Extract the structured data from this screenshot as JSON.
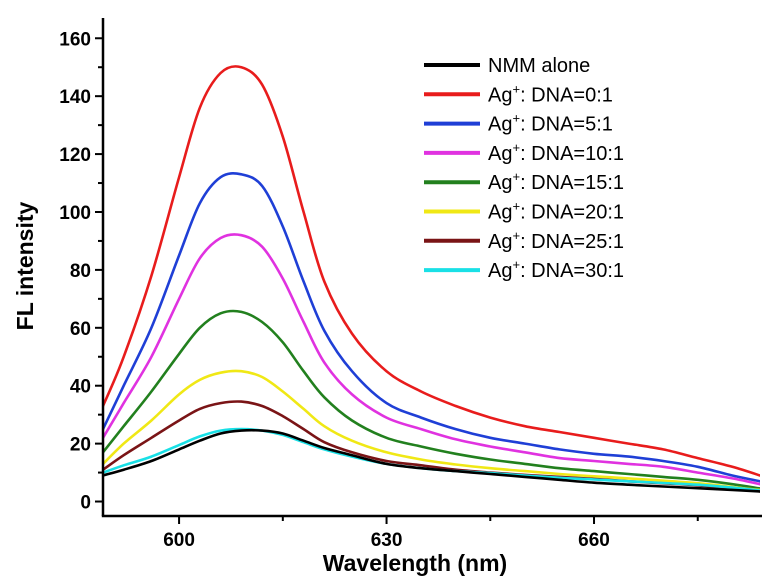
{
  "chart_data": {
    "type": "line",
    "xlabel": "Wavelength (nm)",
    "ylabel": "FL intensity",
    "xlim": [
      589,
      684
    ],
    "ylim": [
      -5,
      167
    ],
    "xticks": [
      600,
      630,
      660
    ],
    "yticks": [
      0,
      20,
      40,
      60,
      80,
      100,
      120,
      140,
      160
    ],
    "legend_position": "top-right",
    "x": [
      589,
      592,
      596,
      600,
      603,
      606,
      609,
      612,
      615,
      618,
      621,
      625,
      630,
      635,
      640,
      645,
      650,
      655,
      660,
      665,
      670,
      675,
      680,
      684
    ],
    "series": [
      {
        "name": "NMM alone",
        "color": "#000000",
        "values": [
          9,
          11,
          14,
          18,
          21,
          23.5,
          24.5,
          24.5,
          23.5,
          21,
          18.5,
          16,
          13,
          11.5,
          10.5,
          9.5,
          8.5,
          7.5,
          6.5,
          5.8,
          5.2,
          4.6,
          4,
          3.5
        ]
      },
      {
        "name": "Ag⁺: DNA=0:1",
        "color": "#e81c1c",
        "values": [
          33,
          50,
          78,
          112,
          136,
          148,
          150,
          144,
          126,
          100,
          76,
          58,
          45,
          38,
          33,
          29,
          26,
          24,
          22,
          20,
          18,
          15,
          12,
          9
        ]
      },
      {
        "name": "Ag⁺: DNA=5:1",
        "color": "#1f3fd6",
        "values": [
          25,
          40,
          60,
          85,
          103,
          112,
          113,
          109,
          95,
          76,
          59,
          45,
          34,
          29,
          25,
          22,
          20,
          18,
          16.5,
          15.5,
          14,
          12,
          9,
          7
        ]
      },
      {
        "name": "Ag⁺: DNA=10:1",
        "color": "#e032e0",
        "values": [
          22,
          34,
          50,
          70,
          84,
          91,
          92,
          88,
          77,
          62,
          48,
          37,
          29,
          25,
          21.5,
          19,
          17,
          15,
          14,
          13,
          12,
          10,
          8,
          6
        ]
      },
      {
        "name": "Ag⁺: DNA=15:1",
        "color": "#22801e",
        "values": [
          17,
          26,
          38,
          51,
          60,
          65,
          65.5,
          62,
          55,
          45,
          36,
          28,
          22,
          19,
          16.5,
          14.5,
          13,
          11.5,
          10.5,
          9.5,
          8.5,
          7.5,
          6,
          4.5
        ]
      },
      {
        "name": "Ag⁺: DNA=20:1",
        "color": "#f0e815",
        "values": [
          13,
          20,
          28,
          37,
          42,
          44.5,
          45,
          43,
          38,
          32,
          26,
          21,
          17,
          14.5,
          12.8,
          11.5,
          10.5,
          9.5,
          8.7,
          8,
          7.2,
          6.3,
          5,
          4
        ]
      },
      {
        "name": "Ag⁺: DNA=25:1",
        "color": "#7a1416",
        "values": [
          11,
          16,
          22,
          28,
          32,
          34,
          34.5,
          33,
          29.5,
          25,
          20.5,
          17,
          14,
          12.5,
          11,
          10,
          9.2,
          8.5,
          7.8,
          7,
          6.3,
          5.6,
          4.5,
          3.5
        ]
      },
      {
        "name": "Ag⁺: DNA=30:1",
        "color": "#19e0e6",
        "values": [
          10,
          12.5,
          15.5,
          19.5,
          22.5,
          24.5,
          25,
          24.5,
          23,
          20.5,
          18,
          15.5,
          13,
          11.5,
          10.5,
          9.8,
          9,
          8.2,
          7.6,
          7,
          6.4,
          5.8,
          4.8,
          3.8
        ]
      }
    ]
  }
}
